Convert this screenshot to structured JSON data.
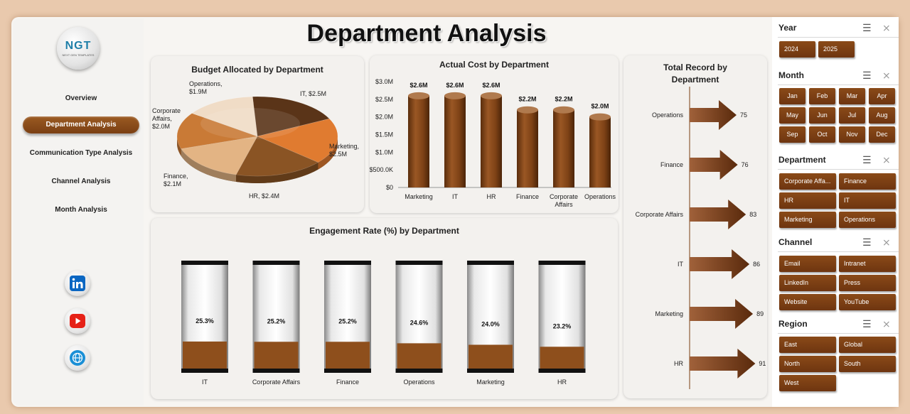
{
  "app": {
    "title": "Department Analysis",
    "logo_text": "NGT",
    "logo_sub": "NEXT GEN TEMPLATES"
  },
  "nav": [
    {
      "label": "Overview",
      "active": false
    },
    {
      "label": "Department Analysis",
      "active": true
    },
    {
      "label": "Communication Type Analysis",
      "active": false
    },
    {
      "label": "Channel Analysis",
      "active": false
    },
    {
      "label": "Month Analysis",
      "active": false
    }
  ],
  "social": [
    {
      "icon": "linkedin-icon",
      "color": "#0a66c2"
    },
    {
      "icon": "youtube-icon",
      "color": "#e62117"
    },
    {
      "icon": "globe-icon",
      "color": "#1a8fd6"
    }
  ],
  "colors": {
    "accent": "#7a3f13",
    "background": "#e9c9ad"
  },
  "chart_data": [
    {
      "type": "pie",
      "title": "Budget Allocated by Department",
      "categories": [
        "IT",
        "Marketing",
        "HR",
        "Finance",
        "Corporate Affairs",
        "Operations"
      ],
      "values": [
        2.5,
        2.5,
        2.4,
        2.1,
        2.0,
        1.9
      ],
      "labels": [
        "IT, $2.5M",
        "Marketing, $2.5M",
        "HR, $2.4M",
        "Finance, $2.1M",
        "Corporate Affairs, $2.0M",
        "Operations, $1.9M"
      ],
      "colors": [
        "#5a3418",
        "#e07b30",
        "#8a5424",
        "#e3b484",
        "#c97a36",
        "#f0dcc6"
      ]
    },
    {
      "type": "bar",
      "title": "Actual Cost by Department",
      "categories": [
        "Marketing",
        "IT",
        "HR",
        "Finance",
        "Corporate Affairs",
        "Operations"
      ],
      "values": [
        2.6,
        2.6,
        2.6,
        2.2,
        2.2,
        2.0
      ],
      "data_labels": [
        "$2.6M",
        "$2.6M",
        "$2.6M",
        "$2.2M",
        "$2.2M",
        "$2.0M"
      ],
      "yticks": [
        "$0",
        "$500.0K",
        "$1.0M",
        "$1.5M",
        "$2.0M",
        "$2.5M",
        "$3.0M"
      ],
      "ylim": [
        0,
        3.0
      ]
    },
    {
      "type": "bar",
      "title": "Total Record by Department",
      "categories": [
        "Operations",
        "Finance",
        "Corporate Affairs",
        "IT",
        "Marketing",
        "HR"
      ],
      "values": [
        75,
        76,
        83,
        86,
        89,
        91
      ]
    },
    {
      "type": "bar",
      "title": "Engagement Rate (%) by Department",
      "categories": [
        "IT",
        "Corporate Affairs",
        "Finance",
        "Operations",
        "Marketing",
        "HR"
      ],
      "values": [
        25.3,
        25.2,
        25.2,
        24.6,
        24.0,
        23.2
      ],
      "data_labels": [
        "25.3%",
        "25.2%",
        "25.2%",
        "24.6%",
        "24.0%",
        "23.2%"
      ]
    }
  ],
  "slicers": [
    {
      "title": "Year",
      "items": [
        "2024",
        "2025"
      ]
    },
    {
      "title": "Month",
      "items": [
        "Jan",
        "Feb",
        "Mar",
        "Apr",
        "May",
        "Jun",
        "Jul",
        "Aug",
        "Sep",
        "Oct",
        "Nov",
        "Dec"
      ]
    },
    {
      "title": "Department",
      "items": [
        "Corporate Affa...",
        "Finance",
        "HR",
        "IT",
        "Marketing",
        "Operations"
      ]
    },
    {
      "title": "Channel",
      "items": [
        "Email",
        "Intranet",
        "LinkedIn",
        "Press",
        "Website",
        "YouTube"
      ]
    },
    {
      "title": "Region",
      "items": [
        "East",
        "Global",
        "North",
        "South",
        "West"
      ]
    }
  ]
}
